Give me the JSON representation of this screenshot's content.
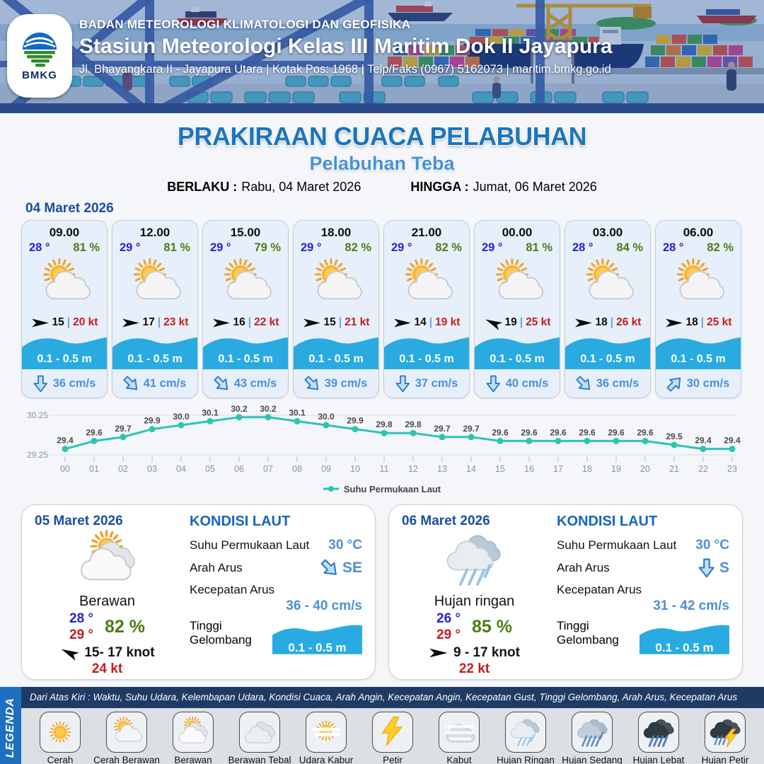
{
  "header": {
    "logo_text": "BMKG",
    "agency": "BADAN METEOROLOGI KLIMATOLOGI DAN GEOFISIKA",
    "station": "Stasiun Meteorologi Kelas III Maritim Dok II Jayapura",
    "address": "Jl. Bhayangkara II - Jayapura Utara | Kotak Pos: 1968 | Telp/Faks (0967) 5162073 | maritim.bmkg.go.id"
  },
  "title": {
    "main": "PRAKIRAAN CUACA PELABUHAN",
    "subtitle": "Pelabuhan Teba",
    "berlaku_label": "BERLAKU :",
    "berlaku_value": "Rabu, 04 Maret 2026",
    "hingga_label": "HINGGA :",
    "hingga_value": "Jumat, 06 Maret 2026"
  },
  "forecast_day": {
    "date": "04 Maret 2026",
    "cards": [
      {
        "time": "09.00",
        "temp": "28 °",
        "humidity": "81 %",
        "weather_icon": "cerah-berawan",
        "wind_dir": "E",
        "wind_speed": "15",
        "wind_gust": "20 kt",
        "wave": "0.1 - 0.5 m",
        "current_dir": "S",
        "current_speed": "36 cm/s"
      },
      {
        "time": "12.00",
        "temp": "29 °",
        "humidity": "81 %",
        "weather_icon": "cerah-berawan",
        "wind_dir": "E",
        "wind_speed": "17",
        "wind_gust": "23 kt",
        "wave": "0.1 - 0.5 m",
        "current_dir": "SE",
        "current_speed": "41 cm/s"
      },
      {
        "time": "15.00",
        "temp": "29 °",
        "humidity": "79 %",
        "weather_icon": "cerah-berawan",
        "wind_dir": "E",
        "wind_speed": "16",
        "wind_gust": "22 kt",
        "wave": "0.1 - 0.5 m",
        "current_dir": "SE",
        "current_speed": "43 cm/s"
      },
      {
        "time": "18.00",
        "temp": "29 °",
        "humidity": "82 %",
        "weather_icon": "cerah-berawan",
        "wind_dir": "E",
        "wind_speed": "15",
        "wind_gust": "21 kt",
        "wave": "0.1 - 0.5 m",
        "current_dir": "SE",
        "current_speed": "39 cm/s"
      },
      {
        "time": "21.00",
        "temp": "29 °",
        "humidity": "82 %",
        "weather_icon": "cerah-berawan",
        "wind_dir": "E",
        "wind_speed": "14",
        "wind_gust": "19 kt",
        "wave": "0.1 - 0.5 m",
        "current_dir": "S",
        "current_speed": "37 cm/s"
      },
      {
        "time": "00.00",
        "temp": "29 °",
        "humidity": "81 %",
        "weather_icon": "cerah-berawan",
        "wind_dir": "WNW",
        "wind_speed": "19",
        "wind_gust": "25 kt",
        "wave": "0.1 - 0.5 m",
        "current_dir": "S",
        "current_speed": "40 cm/s"
      },
      {
        "time": "03.00",
        "temp": "28 °",
        "humidity": "84 %",
        "weather_icon": "cerah-berawan",
        "wind_dir": "E",
        "wind_speed": "18",
        "wind_gust": "26 kt",
        "wave": "0.1 - 0.5 m",
        "current_dir": "SE",
        "current_speed": "36 cm/s"
      },
      {
        "time": "06.00",
        "temp": "28 °",
        "humidity": "82 %",
        "weather_icon": "cerah-berawan",
        "wind_dir": "E",
        "wind_speed": "18",
        "wind_gust": "25 kt",
        "wave": "0.1 - 0.5 m",
        "current_dir": "NE",
        "current_speed": "30 cm/s"
      }
    ]
  },
  "chart_data": {
    "type": "line",
    "series_name": "Suhu Permukaan Laut",
    "x": [
      "00",
      "01",
      "02",
      "03",
      "04",
      "05",
      "06",
      "07",
      "08",
      "09",
      "10",
      "11",
      "12",
      "13",
      "14",
      "15",
      "16",
      "17",
      "18",
      "19",
      "20",
      "21",
      "22",
      "23"
    ],
    "values": [
      29.4,
      29.6,
      29.7,
      29.9,
      30.0,
      30.1,
      30.2,
      30.2,
      30.1,
      30.0,
      29.9,
      29.8,
      29.8,
      29.7,
      29.7,
      29.6,
      29.6,
      29.6,
      29.6,
      29.6,
      29.6,
      29.5,
      29.4,
      29.4
    ],
    "ylim": [
      29.25,
      30.25
    ],
    "yticks": [
      "29.25",
      "30.25"
    ],
    "line_color": "#2cc5b2",
    "grid": true,
    "legend_position": "bottom"
  },
  "daily_cards": [
    {
      "date": "05 Maret 2026",
      "weather_icon": "berawan",
      "condition": "Berawan",
      "temp_min": "28 °",
      "temp_max": "29 °",
      "humidity": "82 %",
      "wind_dir": "WNW",
      "wind_range": "15- 17 knot",
      "wind_gust": "24 kt",
      "sea": {
        "heading": "KONDISI LAUT",
        "sst_label": "Suhu Permukaan Laut",
        "sst_value": "30 °C",
        "current_dir_label": "Arah Arus",
        "current_dir": "SE",
        "current_dir_value": "SE",
        "current_speed_label": "Kecepatan Arus",
        "current_speed_value": "36 - 40 cm/s",
        "wave_label": "Tinggi Gelombang",
        "wave_value": "0.1 - 0.5 m"
      }
    },
    {
      "date": "06 Maret 2026",
      "weather_icon": "hujan-ringan",
      "condition": "Hujan ringan",
      "temp_min": "26 °",
      "temp_max": "29 °",
      "humidity": "85 %",
      "wind_dir": "E",
      "wind_range": "9  - 17 knot",
      "wind_gust": "22 kt",
      "sea": {
        "heading": "KONDISI LAUT",
        "sst_label": "Suhu Permukaan Laut",
        "sst_value": "30 °C",
        "current_dir_label": "Arah Arus",
        "current_dir": "S",
        "current_dir_value": "S",
        "current_speed_label": "Kecepatan Arus",
        "current_speed_value": "31  - 42 cm/s",
        "wave_label": "Tinggi Gelombang",
        "wave_value": "0.1 - 0.5 m"
      }
    }
  ],
  "legend": {
    "side_label": "LEGENDA",
    "note": "Dari Atas Kiri : Waktu, Suhu Udara, Kelembapan Udara, Kondisi Cuaca, Arah Angin, Kecepatan Angin, Kecepatan Gust, Tinggi Gelombang, Arah Arus, Kecepatan Arus",
    "items": [
      {
        "icon": "cerah",
        "label": "Cerah"
      },
      {
        "icon": "cerah-berawan",
        "label": "Cerah Berawan"
      },
      {
        "icon": "berawan",
        "label": "Berawan"
      },
      {
        "icon": "berawan-tebal",
        "label": "Berawan Tebal"
      },
      {
        "icon": "udara-kabur",
        "label": "Udara Kabur"
      },
      {
        "icon": "petir",
        "label": "Petir"
      },
      {
        "icon": "kabut",
        "label": "Kabut"
      },
      {
        "icon": "hujan-ringan",
        "label": "Hujan Ringan"
      },
      {
        "icon": "hujan-sedang",
        "label": "Hujan Sedang"
      },
      {
        "icon": "hujan-lebat",
        "label": "Hujan Lebat"
      },
      {
        "icon": "hujan-petir",
        "label": "Hujan Petir"
      }
    ]
  },
  "colors": {
    "accent_blue": "#1c75bc",
    "subtitle_blue": "#4791d6",
    "navy": "#1b4f9e",
    "temp_blue": "#2122d8",
    "humidity_green": "#4c7d15",
    "gust_red": "#c71c1c",
    "wave_blue": "#29abe2",
    "current_blue": "#4a90d9",
    "chart_teal": "#2cc5b2",
    "legend_strip": "#1e6fc0",
    "legend_note_bar": "#203a66"
  }
}
